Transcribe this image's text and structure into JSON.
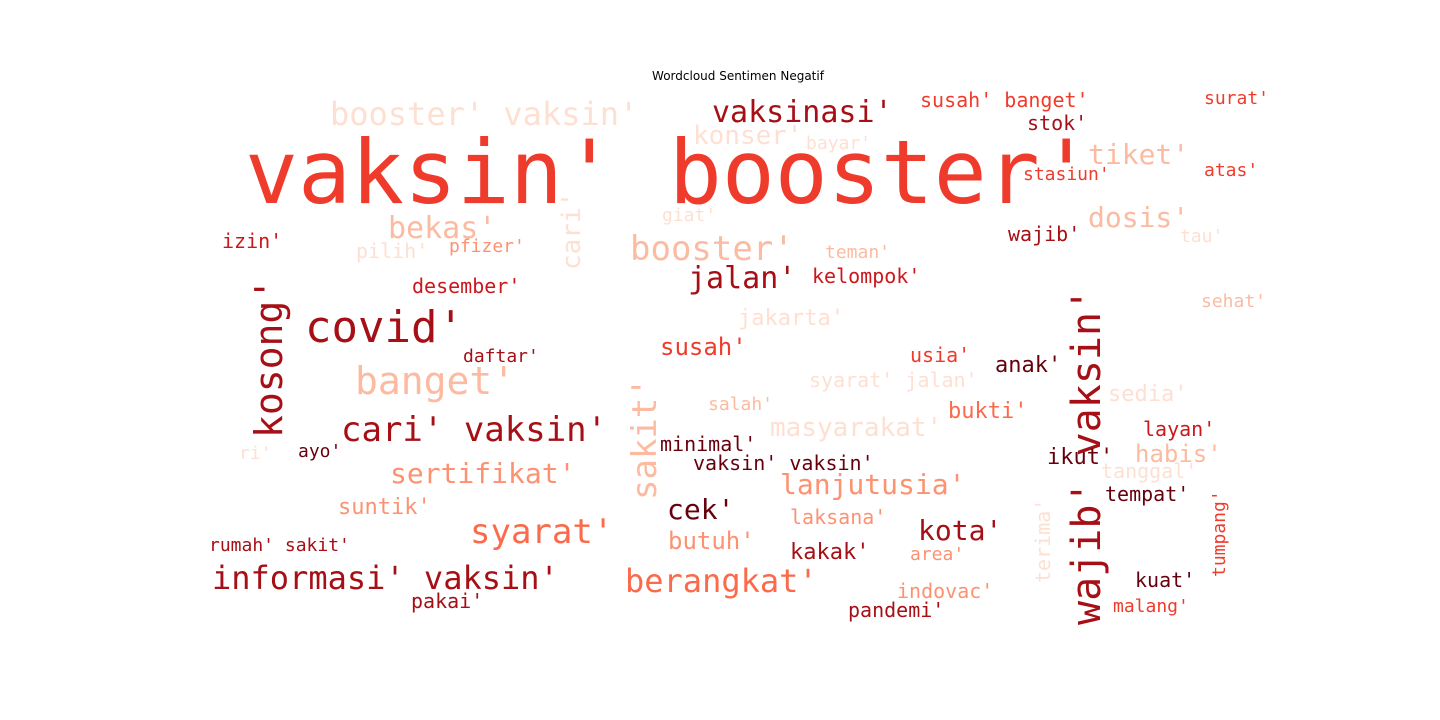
{
  "title": "Wordcloud Sentimen Negatif",
  "colors": {
    "background": "#ffffff",
    "text": "#000000",
    "palette": [
      "#67000d",
      "#a50f15",
      "#cb181d",
      "#ef3b2c",
      "#fb6a4a",
      "#fc9272",
      "#fcbba1",
      "#fee0d2"
    ]
  },
  "words": [
    {
      "text": "vaksin' booster'"
    },
    {
      "text": "wajib' vaksin'"
    },
    {
      "text": "covid'"
    },
    {
      "text": "kosong'"
    },
    {
      "text": "cari' vaksin'"
    },
    {
      "text": "banget'"
    },
    {
      "text": "booster'"
    },
    {
      "text": "booster' vaksin'"
    },
    {
      "text": "vaksinasi'"
    },
    {
      "text": "informasi' vaksin'"
    },
    {
      "text": "berangkat'"
    },
    {
      "text": "syarat'"
    },
    {
      "text": "sakit'"
    },
    {
      "text": "bekas'"
    },
    {
      "text": "jalan'"
    },
    {
      "text": "sertifikat'"
    },
    {
      "text": "masyarakat'"
    },
    {
      "text": "lanjutusia'"
    },
    {
      "text": "dosis'"
    },
    {
      "text": "tiket'"
    },
    {
      "text": "kota'"
    },
    {
      "text": "cek'"
    },
    {
      "text": "susah'"
    },
    {
      "text": "butuh'"
    },
    {
      "text": "cari'"
    },
    {
      "text": "konser'"
    },
    {
      "text": "habis'"
    },
    {
      "text": "susah' banget'"
    },
    {
      "text": "stok'"
    },
    {
      "text": "surat'"
    },
    {
      "text": "stasiun'"
    },
    {
      "text": "atas'"
    },
    {
      "text": "bayar'"
    },
    {
      "text": "giat'"
    },
    {
      "text": "izin'"
    },
    {
      "text": "pilih'"
    },
    {
      "text": "pfizer'"
    },
    {
      "text": "teman'"
    },
    {
      "text": "wajib'"
    },
    {
      "text": "tau'"
    },
    {
      "text": "kelompok'"
    },
    {
      "text": "desember'"
    },
    {
      "text": "sehat'"
    },
    {
      "text": "jakarta'"
    },
    {
      "text": "daftar'"
    },
    {
      "text": "usia'"
    },
    {
      "text": "anak'"
    },
    {
      "text": "syarat' jalan'"
    },
    {
      "text": "sedia'"
    },
    {
      "text": "salah'"
    },
    {
      "text": "bukti'"
    },
    {
      "text": "layan'"
    },
    {
      "text": "ri'"
    },
    {
      "text": "ayo'"
    },
    {
      "text": "minimal'"
    },
    {
      "text": "vaksin' vaksin'"
    },
    {
      "text": "ikut'"
    },
    {
      "text": "tanggal'"
    },
    {
      "text": "tempat'"
    },
    {
      "text": "suntik'"
    },
    {
      "text": "laksana'"
    },
    {
      "text": "tumpang'"
    },
    {
      "text": "terima'"
    },
    {
      "text": "rumah' sakit'"
    },
    {
      "text": "kakak'"
    },
    {
      "text": "area'"
    },
    {
      "text": "kuat'"
    },
    {
      "text": "indovac'"
    },
    {
      "text": "pakai'"
    },
    {
      "text": "pandemi'"
    },
    {
      "text": "malang'"
    }
  ]
}
